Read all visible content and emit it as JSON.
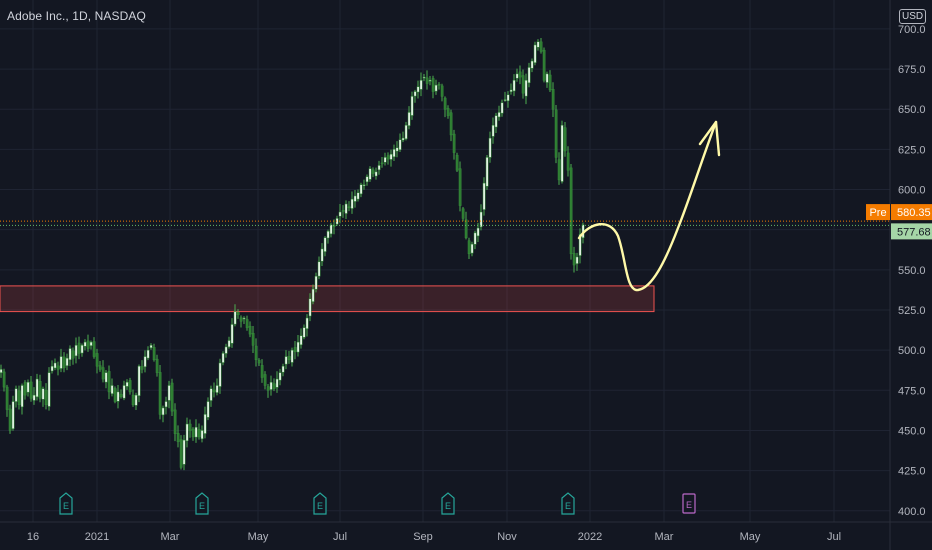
{
  "header": {
    "title": "Adobe Inc., 1D, NASDAQ",
    "currency": "USD"
  },
  "chart_data": {
    "type": "candlestick",
    "xlabels": [
      "16",
      "2021",
      "Mar",
      "May",
      "Jul",
      "Sep",
      "Nov",
      "2022",
      "Mar",
      "May",
      "Jul"
    ],
    "y_ticks": [
      400,
      425,
      450,
      475,
      500,
      525,
      550,
      575,
      600,
      625,
      650,
      675,
      700
    ],
    "ylim": [
      393,
      718
    ],
    "price_tags": {
      "pre_label": "Pre",
      "pre_value": "580.35",
      "last_value": "577.68",
      "pre_color": "#f57c00",
      "last_color": "#a5d6a7"
    },
    "price_path": [
      [
        0,
        488
      ],
      [
        3,
        477
      ],
      [
        6,
        463
      ],
      [
        9,
        450
      ],
      [
        12,
        468
      ],
      [
        15,
        476
      ],
      [
        18,
        466
      ],
      [
        21,
        478
      ],
      [
        24,
        472
      ],
      [
        27,
        480
      ],
      [
        30,
        470
      ],
      [
        33,
        472
      ],
      [
        36,
        482
      ],
      [
        39,
        470
      ],
      [
        42,
        476
      ],
      [
        45,
        466
      ],
      [
        48,
        486
      ],
      [
        51,
        490
      ],
      [
        54,
        492
      ],
      [
        57,
        488
      ],
      [
        60,
        496
      ],
      [
        63,
        489
      ],
      [
        66,
        495
      ],
      [
        69,
        501
      ],
      [
        72,
        495
      ],
      [
        75,
        503
      ],
      [
        78,
        498
      ],
      [
        81,
        503
      ],
      [
        84,
        505
      ],
      [
        87,
        501
      ],
      [
        90,
        505
      ],
      [
        93,
        496
      ],
      [
        96,
        490
      ],
      [
        99,
        488
      ],
      [
        102,
        482
      ],
      [
        105,
        486
      ],
      [
        108,
        474
      ],
      [
        111,
        478
      ],
      [
        114,
        468
      ],
      [
        117,
        474
      ],
      [
        120,
        471
      ],
      [
        123,
        478
      ],
      [
        126,
        480
      ],
      [
        129,
        474
      ],
      [
        132,
        466
      ],
      [
        135,
        472
      ],
      [
        138,
        490
      ],
      [
        141,
        488
      ],
      [
        144,
        496
      ],
      [
        147,
        500
      ],
      [
        150,
        503
      ],
      [
        153,
        494
      ],
      [
        156,
        486
      ],
      [
        159,
        460
      ],
      [
        162,
        464
      ],
      [
        165,
        468
      ],
      [
        168,
        478
      ],
      [
        171,
        462
      ],
      [
        174,
        448
      ],
      [
        177,
        443
      ],
      [
        180,
        427
      ],
      [
        183,
        444
      ],
      [
        186,
        454
      ],
      [
        189,
        450
      ],
      [
        192,
        446
      ],
      [
        195,
        452
      ],
      [
        198,
        446
      ],
      [
        201,
        450
      ],
      [
        204,
        460
      ],
      [
        207,
        468
      ],
      [
        210,
        476
      ],
      [
        213,
        474
      ],
      [
        216,
        478
      ],
      [
        219,
        492
      ],
      [
        222,
        498
      ],
      [
        225,
        502
      ],
      [
        228,
        506
      ],
      [
        231,
        516
      ],
      [
        234,
        524
      ],
      [
        237,
        522
      ],
      [
        240,
        518
      ],
      [
        243,
        520
      ],
      [
        246,
        514
      ],
      [
        249,
        510
      ],
      [
        252,
        503
      ],
      [
        255,
        494
      ],
      [
        258,
        492
      ],
      [
        261,
        483
      ],
      [
        264,
        478
      ],
      [
        267,
        475
      ],
      [
        270,
        480
      ],
      [
        273,
        476
      ],
      [
        276,
        482
      ],
      [
        279,
        486
      ],
      [
        282,
        490
      ],
      [
        285,
        496
      ],
      [
        288,
        494
      ],
      [
        291,
        500
      ],
      [
        294,
        499
      ],
      [
        297,
        505
      ],
      [
        300,
        509
      ],
      [
        303,
        514
      ],
      [
        306,
        520
      ],
      [
        309,
        532
      ],
      [
        312,
        538
      ],
      [
        315,
        546
      ],
      [
        318,
        555
      ],
      [
        321,
        563
      ],
      [
        324,
        570
      ],
      [
        327,
        574
      ],
      [
        330,
        578
      ],
      [
        333,
        577
      ],
      [
        336,
        582
      ],
      [
        339,
        586
      ],
      [
        342,
        587
      ],
      [
        345,
        591
      ],
      [
        348,
        589
      ],
      [
        351,
        594
      ],
      [
        354,
        596
      ],
      [
        357,
        598
      ],
      [
        360,
        603
      ],
      [
        363,
        603
      ],
      [
        366,
        608
      ],
      [
        369,
        613
      ],
      [
        372,
        610
      ],
      [
        375,
        611
      ],
      [
        378,
        615
      ],
      [
        381,
        616
      ],
      [
        384,
        620
      ],
      [
        387,
        619
      ],
      [
        390,
        622
      ],
      [
        393,
        625
      ],
      [
        396,
        626
      ],
      [
        399,
        631
      ],
      [
        402,
        632
      ],
      [
        405,
        640
      ],
      [
        408,
        648
      ],
      [
        411,
        658
      ],
      [
        414,
        661
      ],
      [
        417,
        664
      ],
      [
        420,
        668
      ],
      [
        423,
        670
      ],
      [
        426,
        666
      ],
      [
        429,
        668
      ],
      [
        432,
        661
      ],
      [
        435,
        665
      ],
      [
        438,
        665
      ],
      [
        441,
        658
      ],
      [
        444,
        650
      ],
      [
        447,
        646
      ],
      [
        450,
        634
      ],
      [
        453,
        623
      ],
      [
        456,
        612
      ],
      [
        459,
        590
      ],
      [
        462,
        582
      ],
      [
        465,
        570
      ],
      [
        468,
        560
      ],
      [
        471,
        566
      ],
      [
        474,
        573
      ],
      [
        477,
        576
      ],
      [
        480,
        586
      ],
      [
        483,
        604
      ],
      [
        486,
        620
      ],
      [
        489,
        632
      ],
      [
        492,
        640
      ],
      [
        495,
        646
      ],
      [
        498,
        648
      ],
      [
        501,
        654
      ],
      [
        504,
        656
      ],
      [
        507,
        659
      ],
      [
        510,
        662
      ],
      [
        513,
        668
      ],
      [
        516,
        672
      ],
      [
        519,
        670
      ],
      [
        522,
        660
      ],
      [
        525,
        668
      ],
      [
        528,
        676
      ],
      [
        531,
        680
      ],
      [
        534,
        690
      ],
      [
        537,
        692
      ],
      [
        540,
        686
      ],
      [
        543,
        668
      ],
      [
        546,
        672
      ],
      [
        549,
        662
      ],
      [
        552,
        650
      ],
      [
        555,
        620
      ],
      [
        558,
        606
      ],
      [
        561,
        640
      ],
      [
        564,
        624
      ],
      [
        567,
        612
      ],
      [
        570,
        560
      ],
      [
        573,
        553
      ],
      [
        576,
        558
      ],
      [
        579,
        572
      ],
      [
        582,
        578
      ]
    ],
    "support_zone": {
      "y_from": 524,
      "y_to": 540,
      "color": "#ef5350"
    },
    "earnings_markers": {
      "label": "E",
      "future_label": "E"
    },
    "projection_color": "#fff9a8"
  }
}
